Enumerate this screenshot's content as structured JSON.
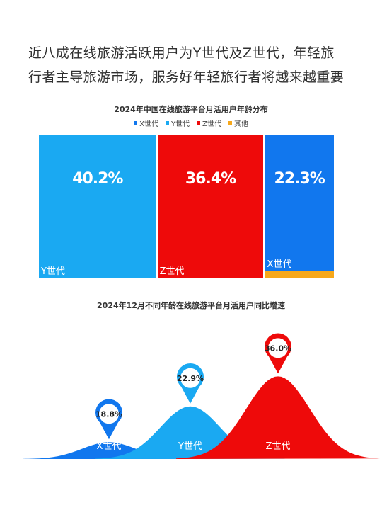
{
  "headline": {
    "line1": "近八成在线旅游活跃用户为Y世代及Z世代，年轻旅",
    "line2": "行者主导旅游市场，服务好年轻旅行者将越来越重要"
  },
  "chart_data": [
    {
      "type": "treemap",
      "title": "2024年中国在线旅游平台月活用户年龄分布",
      "legend": [
        "X世代",
        "Y世代",
        "Z世代",
        "其他"
      ],
      "colors": {
        "X世代": "#1177ee",
        "Y世代": "#1aa9f2",
        "Z世代": "#ee0a0a",
        "其他": "#f7a81b"
      },
      "items": [
        {
          "name": "Y世代",
          "value": 40.2,
          "label": "40.2%"
        },
        {
          "name": "Z世代",
          "value": 36.4,
          "label": "36.4%"
        },
        {
          "name": "X世代",
          "value": 22.3,
          "label": "22.3%"
        },
        {
          "name": "其他",
          "value": 1.1,
          "label": ""
        }
      ]
    },
    {
      "type": "area",
      "title": "2024年12月不同年龄在线旅游平台月活用户同比增速",
      "categories": [
        "X世代",
        "Y世代",
        "Z世代"
      ],
      "values": [
        18.8,
        22.9,
        36.0
      ],
      "labels": [
        "18.8%",
        "22.9%",
        "36.0%"
      ],
      "colors": [
        "#1177ee",
        "#1aa9f2",
        "#ee0a0a"
      ]
    }
  ]
}
